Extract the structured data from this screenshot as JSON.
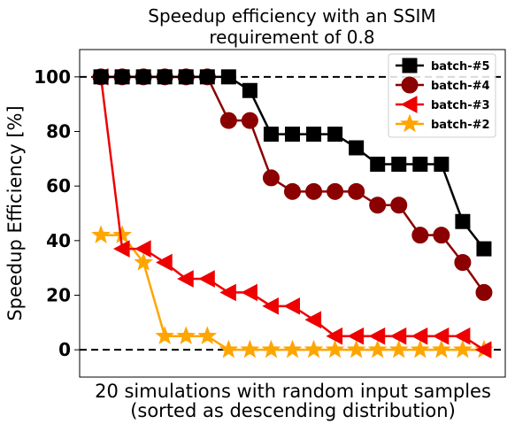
{
  "chart_data": {
    "type": "line",
    "title_lines": [
      "Speedup efficiency with an SSIM",
      "requirement of 0.8"
    ],
    "xlabel_lines": [
      "20 simulations with random input samples",
      "(sorted as descending distribution)"
    ],
    "ylabel": "Speedup Efficiency [%]",
    "ylim": [
      -10,
      110
    ],
    "xlim": [
      -1,
      19
    ],
    "yticks": [
      0,
      20,
      40,
      60,
      80,
      100
    ],
    "reference_lines": [
      0,
      100
    ],
    "legend_position": "top-right",
    "series": [
      {
        "name": "batch-#5",
        "color": "#000000",
        "marker": "square",
        "x": [
          0,
          1,
          2,
          3,
          4,
          5,
          6,
          7,
          8,
          9,
          10,
          11,
          12,
          13,
          14,
          15,
          16,
          17,
          18
        ],
        "values": [
          100,
          100,
          100,
          100,
          100,
          100,
          100,
          95,
          79,
          79,
          79,
          79,
          74,
          68,
          68,
          68,
          68,
          47,
          37
        ]
      },
      {
        "name": "batch-#4",
        "color": "#8b0000",
        "marker": "circle",
        "x": [
          0,
          1,
          2,
          3,
          4,
          5,
          6,
          7,
          8,
          9,
          10,
          11,
          12,
          13,
          14,
          15,
          16,
          17,
          18
        ],
        "values": [
          100,
          100,
          100,
          100,
          100,
          100,
          84,
          84,
          63,
          58,
          58,
          58,
          58,
          53,
          53,
          42,
          42,
          32,
          21
        ]
      },
      {
        "name": "batch-#3",
        "color": "#ee0000",
        "marker": "triangle-left",
        "x": [
          0,
          1,
          2,
          3,
          4,
          5,
          6,
          7,
          8,
          9,
          10,
          11,
          12,
          13,
          14,
          15,
          16,
          17,
          18
        ],
        "values": [
          100,
          37,
          37,
          32,
          26,
          26,
          21,
          21,
          16,
          16,
          11,
          5,
          5,
          5,
          5,
          5,
          5,
          5,
          0
        ]
      },
      {
        "name": "batch-#2",
        "color": "#ffa500",
        "marker": "star",
        "x": [
          0,
          1,
          2,
          3,
          4,
          5,
          6,
          7,
          8,
          9,
          10,
          11,
          12,
          13,
          14,
          15,
          16,
          17,
          18
        ],
        "values": [
          42,
          42,
          32,
          5,
          5,
          5,
          0,
          0,
          0,
          0,
          0,
          0,
          0,
          0,
          0,
          0,
          0,
          0,
          0
        ]
      }
    ]
  }
}
